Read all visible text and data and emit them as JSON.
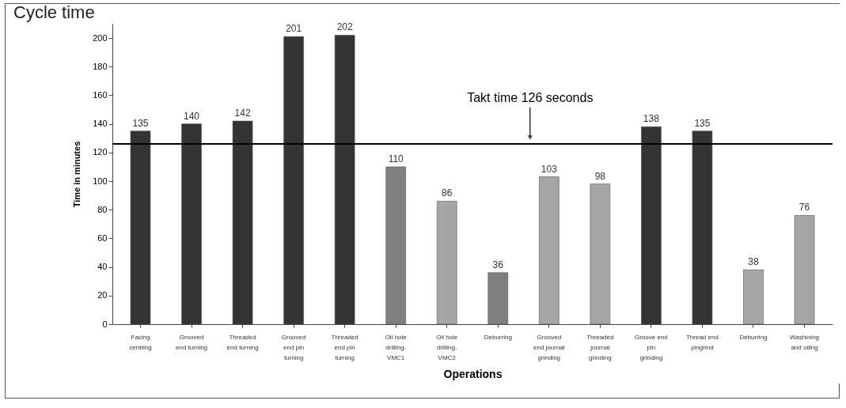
{
  "chart_data": {
    "type": "bar",
    "title": "Cycle time",
    "xlabel": "Operations",
    "ylabel": "Time in minutes",
    "categories": [
      "Facing\ncentring",
      "Grooved\nend turning",
      "Threaded\nend turning",
      "Grooved\nend pin\nturning",
      "Threaded\nend pin\nturning",
      "Oil hole\ndrilling-\nVMC1",
      "Oil hole\ndrilling-\nVMC2",
      "Deburring",
      "Grooved\nend journal\ngrinding",
      "Threaded\njournal\ngrinding",
      "Groove end\npin\ngrinding",
      "Thread end\npingrind",
      "Deburring",
      "Washining\nand oiling"
    ],
    "values": [
      135,
      140,
      142,
      201,
      202,
      110,
      86,
      36,
      103,
      98,
      138,
      135,
      38,
      76
    ],
    "colors": [
      "#333333",
      "#333333",
      "#333333",
      "#333333",
      "#333333",
      "#808080",
      "#a6a6a6",
      "#808080",
      "#a6a6a6",
      "#a6a6a6",
      "#333333",
      "#333333",
      "#a6a6a6",
      "#a6a6a6"
    ],
    "data_labels": true,
    "ylim": [
      0,
      210
    ],
    "yticks": [
      0,
      20,
      40,
      60,
      80,
      100,
      120,
      140,
      160,
      180,
      200
    ],
    "grid": false,
    "legend": false,
    "ref_lines": [
      {
        "axis": "y",
        "value": 126,
        "label": "Takt time 126 seconds",
        "color": "#000000"
      }
    ]
  }
}
